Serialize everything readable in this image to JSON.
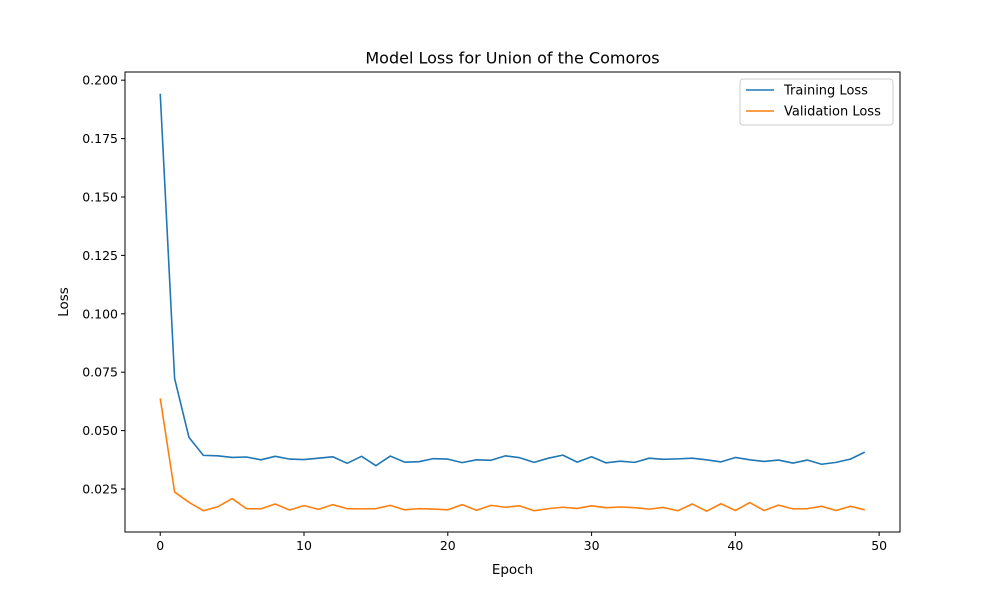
{
  "chart_data": {
    "type": "line",
    "title": "Model Loss for Union of the Comoros",
    "xlabel": "Epoch",
    "ylabel": "Loss",
    "xlim": [
      -2.45,
      51.45
    ],
    "ylim": [
      0.0066,
      0.2035
    ],
    "xticks": [
      0,
      10,
      20,
      30,
      40,
      50
    ],
    "xtick_labels": [
      "0",
      "10",
      "20",
      "30",
      "40",
      "50"
    ],
    "yticks": [
      0.025,
      0.05,
      0.075,
      0.1,
      0.125,
      0.15,
      0.175,
      0.2
    ],
    "ytick_labels": [
      "0.025",
      "0.050",
      "0.075",
      "0.100",
      "0.125",
      "0.150",
      "0.175",
      "0.200"
    ],
    "grid": false,
    "legend_position": "top-right",
    "x": [
      0,
      1,
      2,
      3,
      4,
      5,
      6,
      7,
      8,
      9,
      10,
      11,
      12,
      13,
      14,
      15,
      16,
      17,
      18,
      19,
      20,
      21,
      22,
      23,
      24,
      25,
      26,
      27,
      28,
      29,
      30,
      31,
      32,
      33,
      34,
      35,
      36,
      37,
      38,
      39,
      40,
      41,
      42,
      43,
      44,
      45,
      46,
      47,
      48,
      49
    ],
    "series": [
      {
        "name": "Training Loss",
        "color": "#1f77b4",
        "values": [
          0.1942,
          0.0723,
          0.0471,
          0.0394,
          0.0392,
          0.0385,
          0.0387,
          0.0375,
          0.039,
          0.0378,
          0.0376,
          0.0382,
          0.0388,
          0.036,
          0.039,
          0.035,
          0.0391,
          0.0365,
          0.0367,
          0.038,
          0.0378,
          0.0363,
          0.0375,
          0.0373,
          0.0392,
          0.0384,
          0.0364,
          0.0382,
          0.0395,
          0.0365,
          0.0388,
          0.0362,
          0.0369,
          0.0364,
          0.0382,
          0.0377,
          0.0379,
          0.0382,
          0.0375,
          0.0366,
          0.0385,
          0.0375,
          0.0368,
          0.0374,
          0.0361,
          0.0374,
          0.0356,
          0.0364,
          0.0378,
          0.0408
        ]
      },
      {
        "name": "Validation Loss",
        "color": "#ff7f0e",
        "values": [
          0.0638,
          0.0237,
          0.0193,
          0.0157,
          0.0174,
          0.0209,
          0.0166,
          0.0165,
          0.0186,
          0.016,
          0.0179,
          0.0163,
          0.0183,
          0.0166,
          0.0165,
          0.0166,
          0.018,
          0.0161,
          0.0166,
          0.0164,
          0.0161,
          0.0183,
          0.0159,
          0.018,
          0.0172,
          0.0178,
          0.0157,
          0.0166,
          0.0172,
          0.0167,
          0.0178,
          0.017,
          0.0173,
          0.017,
          0.0164,
          0.0171,
          0.0157,
          0.0186,
          0.0155,
          0.0187,
          0.0158,
          0.0192,
          0.0158,
          0.0181,
          0.0165,
          0.0166,
          0.0176,
          0.0158,
          0.0176,
          0.0161
        ]
      }
    ]
  }
}
